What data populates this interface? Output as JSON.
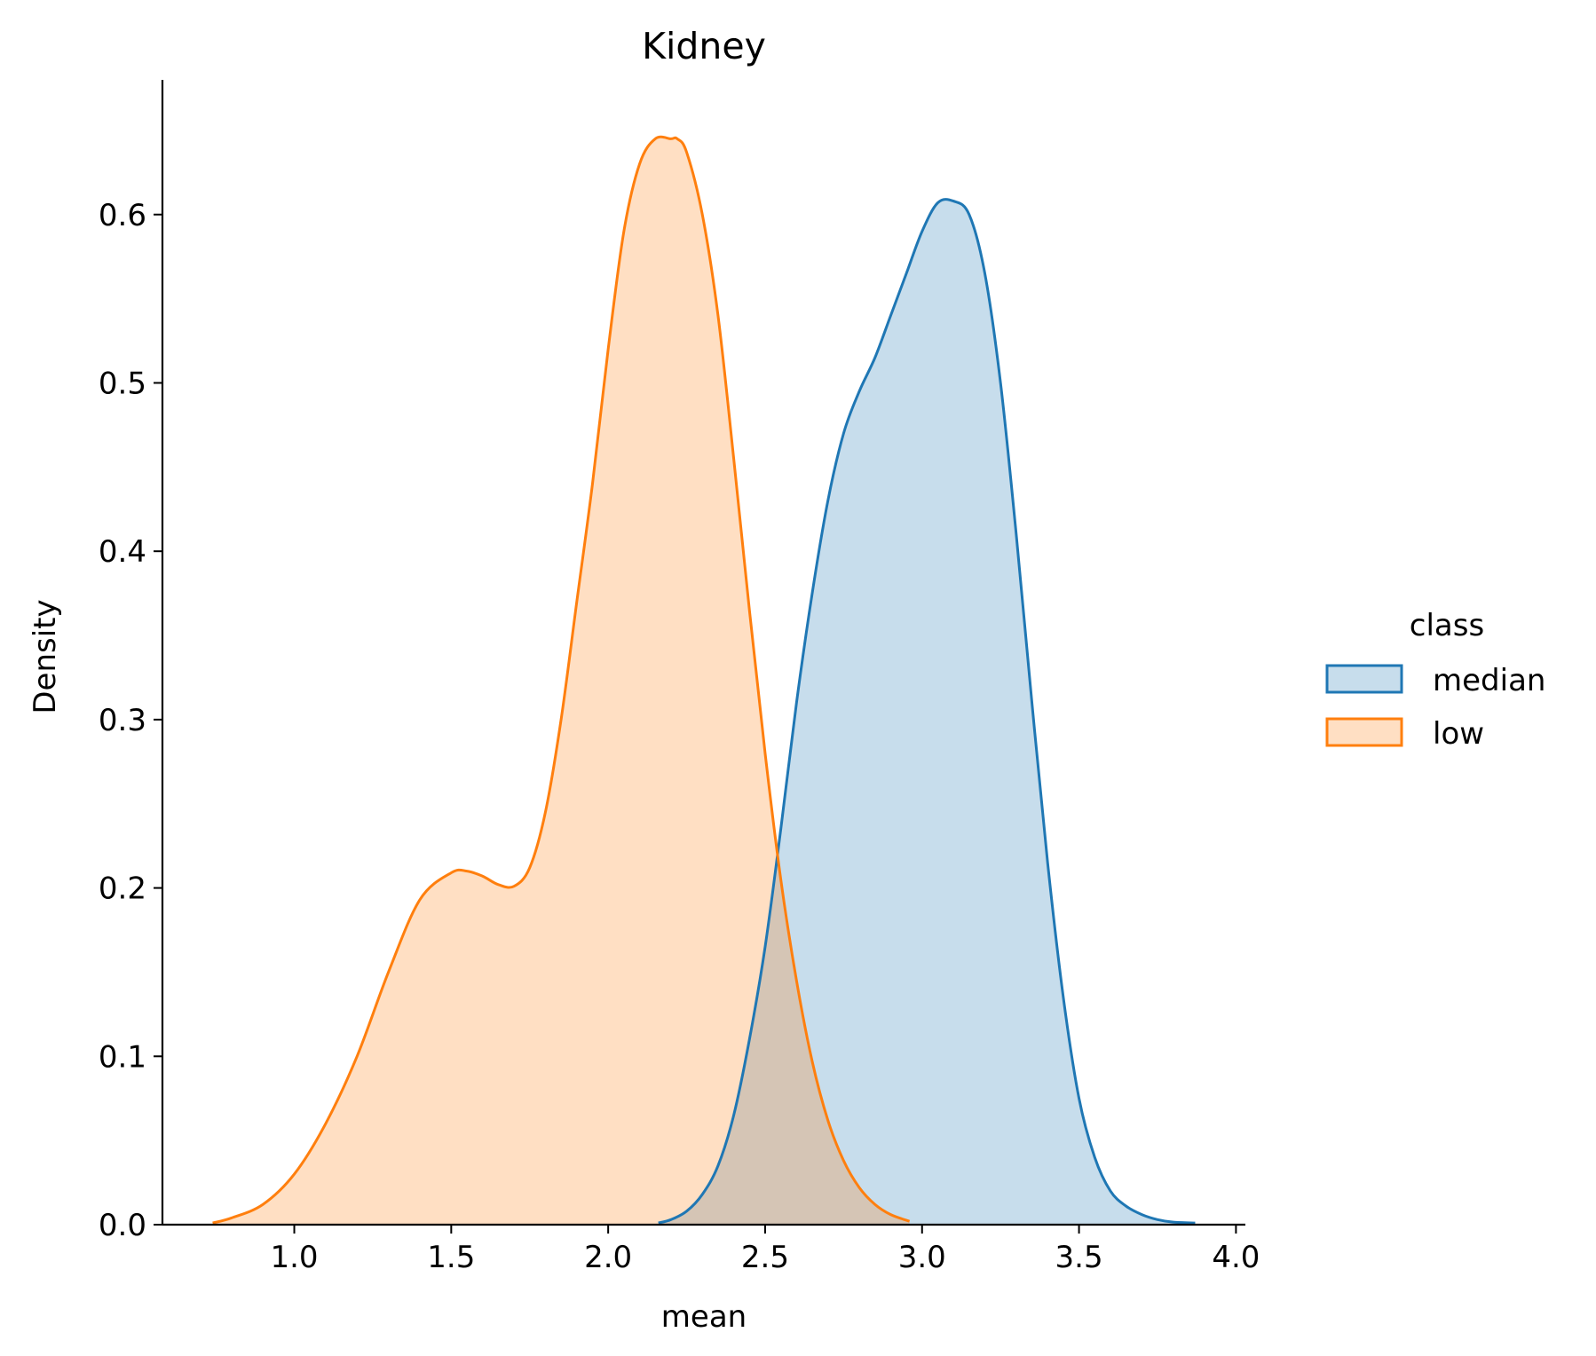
{
  "chart_data": {
    "type": "area",
    "title": "Kidney",
    "xlabel": "mean",
    "ylabel": "Density",
    "xlim": [
      0.58,
      4.03
    ],
    "ylim": [
      0.0,
      0.68
    ],
    "xticks": [
      "1.0",
      "1.5",
      "2.0",
      "2.5",
      "3.0",
      "3.5",
      "4.0"
    ],
    "yticks": [
      "0.0",
      "0.1",
      "0.2",
      "0.3",
      "0.4",
      "0.5",
      "0.6"
    ],
    "legend": {
      "title": "class",
      "placement": "right-outside",
      "entries": [
        "median",
        "low"
      ]
    },
    "colors": {
      "median": "#1f77b4",
      "low": "#ff7f0e"
    },
    "grid": false,
    "series": [
      {
        "name": "median",
        "x": [
          2.16,
          2.2,
          2.25,
          2.3,
          2.35,
          2.4,
          2.45,
          2.5,
          2.55,
          2.6,
          2.65,
          2.7,
          2.75,
          2.8,
          2.85,
          2.9,
          2.95,
          3.0,
          3.05,
          3.1,
          3.15,
          3.2,
          3.25,
          3.3,
          3.35,
          3.4,
          3.45,
          3.5,
          3.55,
          3.6,
          3.65,
          3.7,
          3.75,
          3.8,
          3.87
        ],
        "values": [
          0.001,
          0.003,
          0.008,
          0.018,
          0.035,
          0.065,
          0.11,
          0.165,
          0.235,
          0.31,
          0.375,
          0.43,
          0.47,
          0.495,
          0.515,
          0.54,
          0.565,
          0.59,
          0.607,
          0.608,
          0.6,
          0.565,
          0.5,
          0.41,
          0.31,
          0.215,
          0.135,
          0.075,
          0.04,
          0.02,
          0.011,
          0.006,
          0.003,
          0.0015,
          0.001
        ]
      },
      {
        "name": "low",
        "x": [
          0.74,
          0.8,
          0.9,
          1.0,
          1.1,
          1.2,
          1.3,
          1.4,
          1.5,
          1.55,
          1.6,
          1.65,
          1.7,
          1.75,
          1.8,
          1.85,
          1.9,
          1.95,
          2.0,
          2.05,
          2.1,
          2.15,
          2.2,
          2.22,
          2.25,
          2.3,
          2.35,
          2.4,
          2.45,
          2.5,
          2.55,
          2.6,
          2.65,
          2.7,
          2.75,
          2.8,
          2.85,
          2.9,
          2.96
        ],
        "values": [
          0.001,
          0.004,
          0.012,
          0.03,
          0.06,
          0.1,
          0.15,
          0.193,
          0.209,
          0.21,
          0.207,
          0.202,
          0.201,
          0.212,
          0.245,
          0.3,
          0.37,
          0.44,
          0.52,
          0.59,
          0.63,
          0.645,
          0.645,
          0.645,
          0.637,
          0.6,
          0.54,
          0.455,
          0.365,
          0.28,
          0.205,
          0.145,
          0.097,
          0.062,
          0.038,
          0.022,
          0.012,
          0.006,
          0.002
        ]
      }
    ]
  }
}
